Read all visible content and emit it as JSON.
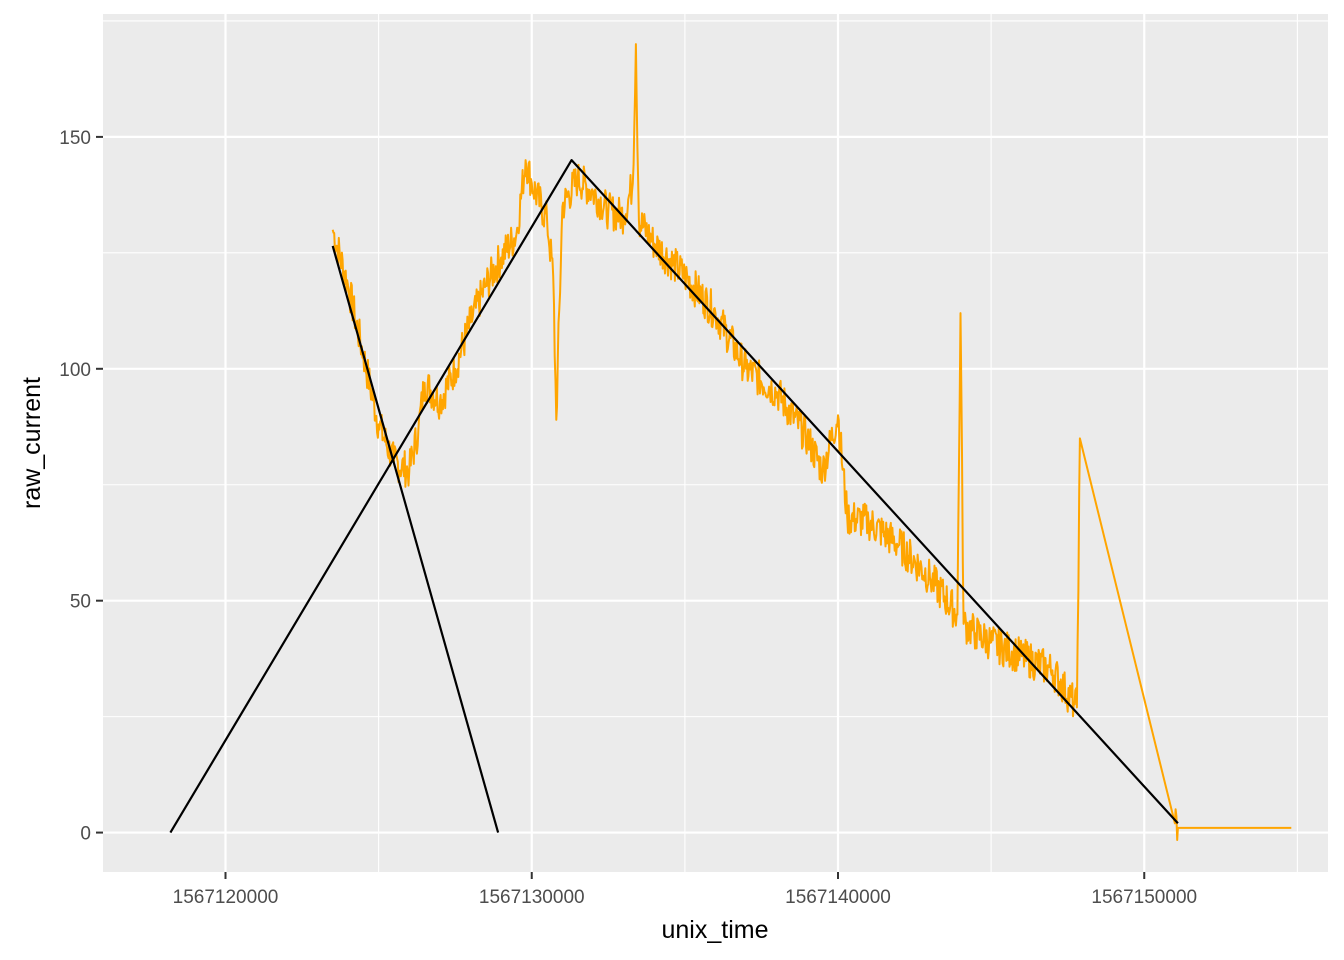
{
  "chart_data": {
    "type": "line",
    "title": "",
    "xlabel": "unix_time",
    "ylabel": "raw_current",
    "xlim": [
      1567116000,
      1567156000
    ],
    "ylim": [
      -8.5,
      176.5
    ],
    "x_ticks": [
      1567120000,
      1567130000,
      1567140000,
      1567150000
    ],
    "x_tick_labels": [
      "1567120000",
      "1567130000",
      "1567140000",
      "1567150000"
    ],
    "y_ticks": [
      0,
      50,
      100,
      150
    ],
    "y_tick_labels": [
      "0",
      "50",
      "100",
      "150"
    ],
    "grid": true,
    "panel_background": "#ebebeb",
    "series": [
      {
        "color": "#ffa500",
        "style": "noisy-line",
        "x": [
          1567123500,
          1567124000,
          1567124500,
          1567125000,
          1567125500,
          1567126000,
          1567126300,
          1567126500,
          1567127000,
          1567127500,
          1567128000,
          1567128500,
          1567129000,
          1567129500,
          1567129800,
          1567130000,
          1567130500,
          1567130700,
          1567130800,
          1567131000,
          1567131500,
          1567132000,
          1567132500,
          1567133000,
          1567133300,
          1567133400,
          1567133500,
          1567134000,
          1567135000,
          1567136000,
          1567137000,
          1567138000,
          1567139000,
          1567139500,
          1567140000,
          1567140300,
          1567141000,
          1567142000,
          1567143000,
          1567143900,
          1567144000,
          1567144100,
          1567144500,
          1567145000,
          1567146000,
          1567147000,
          1567147700,
          1567147800,
          1567147900,
          1567151000,
          1567151100,
          1567154800
        ],
        "y": [
          130,
          118,
          103,
          88,
          80,
          78,
          87,
          97,
          93,
          100,
          110,
          118,
          124,
          129,
          145,
          140,
          132,
          120,
          89,
          135,
          141,
          138,
          134,
          133,
          140,
          170,
          132,
          127,
          120,
          112,
          100,
          95,
          85,
          78,
          90,
          68,
          67,
          62,
          55,
          47,
          112,
          45,
          43,
          41,
          38,
          35,
          28,
          27,
          85,
          2,
          1,
          1
        ]
      },
      {
        "color": "#000000",
        "style": "line",
        "x": [
          1567123500,
          1567128900
        ],
        "y": [
          126.5,
          0
        ]
      },
      {
        "color": "#000000",
        "style": "line",
        "x": [
          1567118200,
          1567131300,
          1567151100
        ],
        "y": [
          0,
          145,
          2
        ]
      }
    ]
  }
}
